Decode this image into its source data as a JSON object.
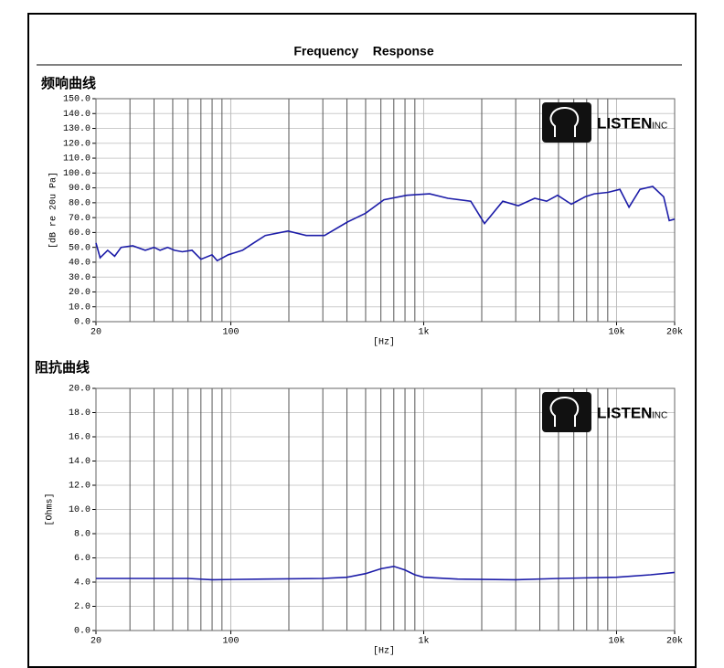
{
  "header": {
    "title": "Frequency    Response"
  },
  "chart_data": [
    {
      "type": "line",
      "title": "频响曲线",
      "xlabel": "[Hz]",
      "ylabel": "[dB re 20u Pa]",
      "log_x": true,
      "grid": true,
      "logo": {
        "name": "LISTEN",
        "suffix": "INC"
      },
      "xlim": [
        20,
        20000
      ],
      "xticks": [
        20,
        100,
        {
          "value": 1000,
          "label": "1k"
        },
        {
          "value": 10000,
          "label": "10k"
        },
        {
          "value": 20000,
          "label": "20k"
        }
      ],
      "ylim": [
        0,
        150
      ],
      "yticks": [
        {
          "value": 0,
          "label": "0.0"
        },
        {
          "value": 10,
          "label": "10.0"
        },
        {
          "value": 20,
          "label": "20.0"
        },
        {
          "value": 30,
          "label": "30.0"
        },
        {
          "value": 40,
          "label": "40.0"
        },
        {
          "value": 50,
          "label": "50.0"
        },
        {
          "value": 60,
          "label": "60.0"
        },
        {
          "value": 70,
          "label": "70.0"
        },
        {
          "value": 80,
          "label": "80.0"
        },
        {
          "value": 90,
          "label": "90.0"
        },
        {
          "value": 100,
          "label": "100.0"
        },
        {
          "value": 110,
          "label": "110.0"
        },
        {
          "value": 120,
          "label": "120.0"
        },
        {
          "value": 130,
          "label": "130.0"
        },
        {
          "value": 140,
          "label": "140.0"
        },
        {
          "value": 150,
          "label": "150.0"
        }
      ],
      "color": "#1c1ca8",
      "x": [
        20,
        21,
        23,
        25,
        27,
        31,
        36,
        40,
        43,
        47,
        51,
        56,
        63,
        70,
        80,
        85,
        97,
        115,
        128,
        151,
        198,
        246,
        306,
        402,
        500,
        622,
        817,
        1074,
        1336,
        1755,
        2066,
        2570,
        3096,
        3767,
        4340,
        4945,
        5826,
        6866,
        7658,
        9020,
        10400,
        11600,
        13220,
        15390,
        17550,
        18750,
        20000
      ],
      "values": [
        53,
        43,
        48,
        44,
        50,
        51,
        48,
        50,
        48,
        50,
        48,
        47,
        48,
        42,
        45,
        41,
        45,
        48,
        52,
        58,
        61,
        58,
        58,
        67,
        73,
        82,
        85,
        86,
        83,
        81,
        66,
        81,
        78,
        83,
        81,
        85,
        79,
        84,
        86,
        87,
        89,
        77,
        89,
        91,
        84,
        68,
        69
      ]
    },
    {
      "type": "line",
      "title": "阻抗曲线",
      "xlabel": "[Hz]",
      "ylabel": "[Ohms]",
      "log_x": true,
      "grid": true,
      "logo": {
        "name": "LISTEN",
        "suffix": "INC"
      },
      "xlim": [
        20,
        20000
      ],
      "xticks": [
        20,
        100,
        {
          "value": 1000,
          "label": "1k"
        },
        {
          "value": 10000,
          "label": "10k"
        },
        {
          "value": 20000,
          "label": "20k"
        }
      ],
      "ylim": [
        0,
        20
      ],
      "yticks": [
        {
          "value": 0,
          "label": "0.0"
        },
        {
          "value": 2,
          "label": "2.0"
        },
        {
          "value": 4,
          "label": "4.0"
        },
        {
          "value": 6,
          "label": "6.0"
        },
        {
          "value": 8,
          "label": "8.0"
        },
        {
          "value": 10,
          "label": "10.0"
        },
        {
          "value": 12,
          "label": "12.0"
        },
        {
          "value": 14,
          "label": "14.0"
        },
        {
          "value": 16,
          "label": "16.0"
        },
        {
          "value": 18,
          "label": "18.0"
        },
        {
          "value": 20,
          "label": "20.0"
        }
      ],
      "color": "#1c1ca8",
      "x": [
        20,
        40,
        60,
        80,
        150,
        300,
        400,
        500,
        600,
        700,
        800,
        900,
        1000,
        1500,
        3000,
        5000,
        10000,
        15000,
        20000
      ],
      "values": [
        4.3,
        4.3,
        4.3,
        4.2,
        4.25,
        4.3,
        4.4,
        4.7,
        5.1,
        5.3,
        5.0,
        4.6,
        4.4,
        4.25,
        4.2,
        4.3,
        4.4,
        4.6,
        4.8
      ]
    }
  ]
}
